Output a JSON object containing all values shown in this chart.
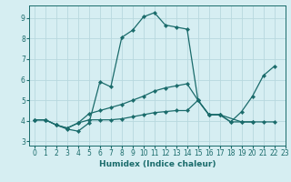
{
  "xlabel": "Humidex (Indice chaleur)",
  "bg_color": "#d6eef2",
  "grid_color": "#b8d8de",
  "line_color": "#1a6b6b",
  "spine_color": "#1a6b6b",
  "xlim": [
    -0.5,
    23
  ],
  "ylim": [
    2.8,
    9.6
  ],
  "xticks": [
    0,
    1,
    2,
    3,
    4,
    5,
    6,
    7,
    8,
    9,
    10,
    11,
    12,
    13,
    14,
    15,
    16,
    17,
    18,
    19,
    20,
    21,
    22,
    23
  ],
  "yticks": [
    3,
    4,
    5,
    6,
    7,
    8,
    9
  ],
  "series": [
    {
      "x": [
        0,
        1,
        2,
        3,
        4,
        5,
        6,
        7,
        8,
        9,
        10,
        11,
        12,
        13,
        14,
        15,
        16,
        17,
        19,
        20
      ],
      "y": [
        4.05,
        4.05,
        3.8,
        3.6,
        3.5,
        3.9,
        5.9,
        5.65,
        8.05,
        8.4,
        9.05,
        9.25,
        8.65,
        8.55,
        8.45,
        5.0,
        4.3,
        4.3,
        3.95,
        3.95
      ]
    },
    {
      "x": [
        0,
        1,
        2,
        3,
        4,
        5,
        6,
        7,
        8,
        9,
        10,
        11,
        12,
        13,
        14,
        15,
        16,
        17,
        18,
        19,
        20,
        21,
        22
      ],
      "y": [
        4.05,
        4.05,
        3.8,
        3.65,
        3.9,
        4.05,
        4.05,
        4.05,
        4.1,
        4.2,
        4.3,
        4.4,
        4.45,
        4.5,
        4.5,
        5.0,
        4.3,
        4.3,
        3.95,
        3.95,
        3.95,
        3.95,
        3.95
      ]
    },
    {
      "x": [
        0,
        1,
        2,
        3,
        4,
        5,
        6,
        7,
        8,
        9,
        10,
        11,
        12,
        13,
        14,
        15,
        16,
        17,
        18,
        19,
        20,
        21,
        22
      ],
      "y": [
        4.05,
        4.05,
        3.8,
        3.65,
        3.9,
        4.35,
        4.5,
        4.65,
        4.8,
        5.0,
        5.2,
        5.45,
        5.6,
        5.7,
        5.8,
        5.0,
        4.3,
        4.3,
        3.95,
        4.45,
        5.2,
        6.2,
        6.65
      ]
    }
  ]
}
